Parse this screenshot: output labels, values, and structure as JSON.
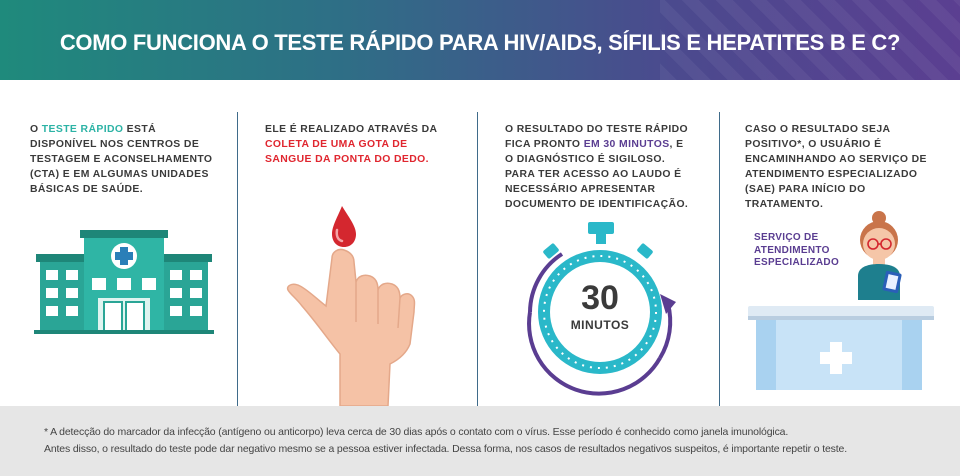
{
  "header": {
    "title": "COMO FUNCIONA O TESTE RÁPIDO PARA HIV/AIDS, SÍFILIS E HEPATITES B E C?"
  },
  "columns": [
    {
      "pre": "O ",
      "highlight": "TESTE RÁPIDO",
      "post": " ESTÁ DISPONÍVEL NOS CENTROS DE TESTAGEM E ACONSELHAMENTO (CTA) E EM ALGUMAS UNIDADES BÁSICAS DE SAÚDE."
    },
    {
      "pre": "ELE É REALIZADO ATRAVÉS DA ",
      "highlight": "COLETA DE UMA GOTA DE SANGUE DA PONTA DO DEDO.",
      "post": ""
    },
    {
      "pre": "O RESULTADO DO TESTE RÁPIDO FICA PRONTO ",
      "highlight": "EM 30 MINUTOS",
      "post": ", E O DIAGNÓSTICO É SIGILOSO. PARA TER ACESSO AO LAUDO É NECESSÁRIO APRESENTAR DOCUMENTO DE IDENTIFICAÇÃO."
    },
    {
      "pre": "CASO O RESULTADO SEJA POSITIVO*, O USUÁRIO É ENCAMINHANDO AO SERVIÇO DE ATENDIMENTO ESPECIALIZADO (SAE) PARA INÍCIO DO TRATAMENTO.",
      "highlight": "",
      "post": ""
    }
  ],
  "timer": {
    "number": "30",
    "unit": "MINUTOS"
  },
  "sae_label": "SERVIÇO DE ATENDIMENTO ESPECIALIZADO",
  "footer": {
    "line1": "* A detecção do marcador da infecção (antígeno ou anticorpo) leva cerca de 30 dias após o contato com o vírus. Esse período é conhecido como janela imunológica.",
    "line2": "Antes disso, o resultado do teste pode dar negativo mesmo se a pessoa estiver infectada. Dessa forma, nos casos de resultados negativos suspeitos, é importante repetir o teste."
  },
  "colors": {
    "teal": "#2cb3a5",
    "red": "#e0262f",
    "purple": "#5a3d91",
    "footer_bg": "#e6e6e6"
  },
  "icons": [
    "hospital-icon",
    "finger-blood-drop-icon",
    "stopwatch-icon",
    "nurse-reception-icon"
  ]
}
